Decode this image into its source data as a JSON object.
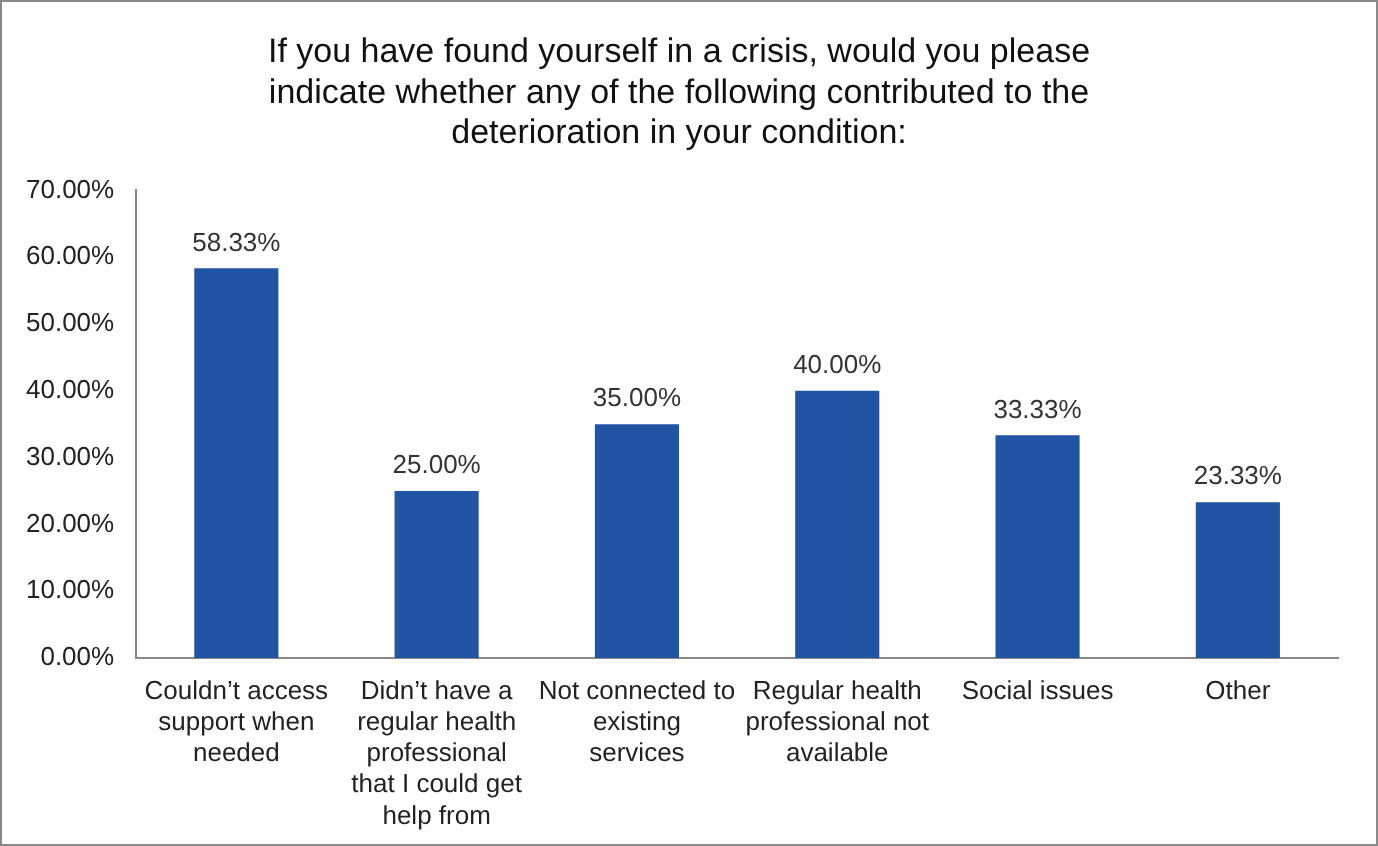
{
  "chart_data": {
    "type": "bar",
    "title": "If you have found yourself in a crisis, would you please indicate whether any of the following contributed to the deterioration in your condition:",
    "categories": [
      "Couldn’t access support when needed",
      "Didn’t have a regular health professional that I could get help from",
      "Not connected to existing services",
      "Regular health professional not available",
      "Social issues",
      "Other"
    ],
    "values": [
      58.33,
      25.0,
      35.0,
      40.0,
      33.33,
      23.33
    ],
    "value_labels": [
      "58.33%",
      "25.00%",
      "35.00%",
      "40.00%",
      "33.33%",
      "23.33%"
    ],
    "color": "#2155a3",
    "ylim": [
      0,
      70
    ],
    "yticks": [
      {
        "value": 0,
        "label": "0.00%"
      },
      {
        "value": 10,
        "label": "10.00%"
      },
      {
        "value": 20,
        "label": "20.00%"
      },
      {
        "value": 30,
        "label": "30.00%"
      },
      {
        "value": 40,
        "label": "40.00%"
      },
      {
        "value": 50,
        "label": "50.00%"
      },
      {
        "value": 60,
        "label": "60.00%"
      },
      {
        "value": 70,
        "label": "70.00%"
      }
    ],
    "grid": false,
    "legend": false
  }
}
